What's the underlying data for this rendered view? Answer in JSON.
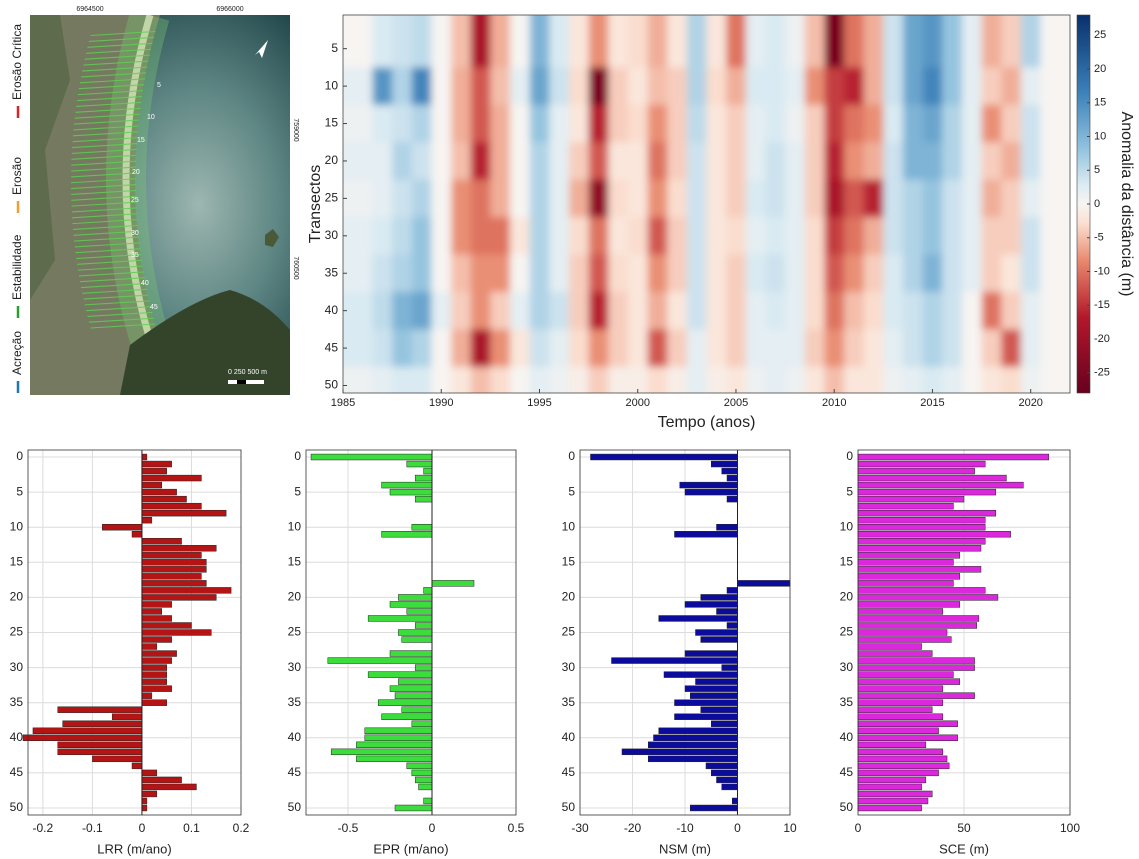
{
  "map": {
    "coords_top": [
      "6964500",
      "6966000"
    ],
    "coords_right": [
      "759000",
      "760500"
    ],
    "transect_labels": [
      "5",
      "10",
      "15",
      "20",
      "25",
      "30",
      "35",
      "40",
      "45"
    ],
    "scale_label": "0  250 500 m",
    "legend": [
      {
        "label": "Erosão Crítica",
        "color": "#d62728"
      },
      {
        "label": "Erosão",
        "color": "#f0a030"
      },
      {
        "label": "Estabilidade",
        "color": "#2ca02c"
      },
      {
        "label": "Acreção",
        "color": "#1f77b4"
      }
    ]
  },
  "chart_data": [
    {
      "type": "heatmap",
      "xlabel": "Tempo (anos)",
      "ylabel": "Transectos",
      "x": [
        1986,
        1987,
        1988,
        1989,
        1990,
        1991,
        1992,
        1993,
        1994,
        1995,
        1996,
        1997,
        1998,
        1999,
        2000,
        2001,
        2002,
        2003,
        2004,
        2005,
        2006,
        2007,
        2008,
        2009,
        2010,
        2011,
        2012,
        2013,
        2014,
        2015,
        2016,
        2017,
        2018,
        2019,
        2020,
        2021
      ],
      "y": [
        5,
        10,
        15,
        20,
        25,
        30,
        35,
        40,
        45,
        50
      ],
      "z": [
        [
          0,
          3,
          4,
          5,
          0,
          -5,
          -18,
          -6,
          0,
          10,
          3,
          -2,
          -8,
          -2,
          -3,
          -6,
          -2,
          6,
          -2,
          -10,
          2,
          3,
          1,
          -5,
          -25,
          -10,
          -6,
          4,
          12,
          14,
          8,
          2,
          -6,
          -4,
          6,
          0
        ],
        [
          2,
          14,
          6,
          16,
          0,
          -6,
          -12,
          -5,
          2,
          12,
          4,
          -3,
          -25,
          -4,
          -2,
          -5,
          -4,
          6,
          -3,
          -6,
          3,
          3,
          2,
          -8,
          -14,
          -16,
          -6,
          4,
          12,
          16,
          8,
          2,
          -4,
          -6,
          2,
          0
        ],
        [
          1,
          3,
          4,
          6,
          0,
          -6,
          -12,
          -6,
          0,
          8,
          2,
          -2,
          -16,
          -4,
          -3,
          -8,
          -4,
          5,
          -2,
          -4,
          2,
          3,
          1,
          -4,
          -14,
          -10,
          -8,
          3,
          10,
          12,
          6,
          2,
          -8,
          -4,
          4,
          0
        ],
        [
          2,
          2,
          6,
          4,
          0,
          -5,
          -16,
          -6,
          0,
          6,
          2,
          -4,
          -12,
          -2,
          -2,
          -10,
          -4,
          4,
          -2,
          -4,
          2,
          4,
          2,
          -4,
          -16,
          -8,
          -6,
          4,
          10,
          10,
          6,
          2,
          -4,
          -6,
          4,
          0
        ],
        [
          1,
          2,
          4,
          6,
          0,
          -8,
          -10,
          -6,
          0,
          6,
          2,
          -6,
          -22,
          -3,
          -2,
          -8,
          -3,
          4,
          -2,
          -4,
          3,
          4,
          2,
          -4,
          -18,
          -12,
          -16,
          4,
          6,
          8,
          4,
          2,
          -6,
          -4,
          2,
          0
        ],
        [
          2,
          3,
          5,
          8,
          0,
          -8,
          -10,
          -10,
          -2,
          6,
          2,
          -3,
          -10,
          -2,
          -3,
          -12,
          -4,
          4,
          -2,
          -3,
          2,
          3,
          2,
          -3,
          -14,
          -10,
          -6,
          4,
          6,
          8,
          4,
          2,
          -4,
          -4,
          4,
          0
        ],
        [
          2,
          4,
          6,
          8,
          0,
          -5,
          -8,
          -8,
          0,
          6,
          2,
          -4,
          -12,
          -3,
          -2,
          -8,
          -4,
          4,
          -2,
          -4,
          3,
          4,
          2,
          -3,
          -12,
          -8,
          -4,
          3,
          6,
          10,
          4,
          2,
          -4,
          -2,
          4,
          0
        ],
        [
          3,
          5,
          10,
          12,
          2,
          -4,
          -8,
          -4,
          2,
          6,
          4,
          -4,
          -16,
          -4,
          -2,
          -6,
          -2,
          4,
          -2,
          -4,
          2,
          3,
          2,
          -3,
          -10,
          -5,
          -3,
          3,
          4,
          6,
          4,
          0,
          -10,
          -4,
          2,
          0
        ],
        [
          3,
          4,
          8,
          6,
          0,
          -6,
          -18,
          -8,
          -2,
          4,
          2,
          -3,
          -8,
          -4,
          -2,
          -12,
          -4,
          2,
          -2,
          -4,
          2,
          2,
          2,
          -4,
          -8,
          -4,
          -2,
          2,
          4,
          6,
          4,
          0,
          -4,
          -12,
          2,
          0
        ],
        [
          1,
          2,
          3,
          3,
          0,
          -2,
          -5,
          -3,
          0,
          2,
          1,
          -1,
          -4,
          -1,
          -1,
          -3,
          -1,
          2,
          -1,
          -2,
          1,
          2,
          1,
          -2,
          -5,
          -2,
          -2,
          1,
          2,
          3,
          2,
          0,
          -2,
          -3,
          1,
          0
        ]
      ],
      "xlim": [
        1985,
        2022
      ],
      "xticks": [
        1985,
        1990,
        1995,
        2000,
        2005,
        2010,
        2015,
        2020
      ],
      "ylim": [
        0.5,
        51
      ],
      "yticks": [
        5,
        10,
        15,
        20,
        25,
        30,
        35,
        40,
        45,
        50
      ],
      "invert_y": true,
      "colormap": "RdBu",
      "colorbar": {
        "label": "Anomalia da distância (m)",
        "lim": [
          -28,
          28
        ],
        "ticks": [
          -25,
          -20,
          -15,
          -10,
          -5,
          0,
          5,
          10,
          15,
          20,
          25
        ]
      }
    },
    {
      "type": "barh",
      "xlabel": "LRR (m/ano)",
      "color": "#b41414",
      "y": [
        0,
        1,
        2,
        3,
        4,
        5,
        6,
        7,
        8,
        9,
        10,
        11,
        12,
        13,
        14,
        15,
        16,
        17,
        18,
        19,
        20,
        21,
        22,
        23,
        24,
        25,
        26,
        27,
        28,
        29,
        30,
        31,
        32,
        33,
        34,
        35,
        36,
        37,
        38,
        39,
        40,
        41,
        42,
        43,
        44,
        45,
        46,
        47,
        48,
        49,
        50
      ],
      "values": [
        0.01,
        0.06,
        0.05,
        0.12,
        0.04,
        0.07,
        0.09,
        0.12,
        0.17,
        0.02,
        -0.08,
        -0.02,
        0.08,
        0.15,
        0.12,
        0.13,
        0.13,
        0.12,
        0.13,
        0.18,
        0.15,
        0.06,
        0.04,
        0.06,
        0.1,
        0.14,
        0.06,
        0.03,
        0.07,
        0.06,
        0.05,
        0.05,
        0.05,
        0.06,
        0.02,
        0.05,
        -0.17,
        -0.06,
        -0.16,
        -0.22,
        -0.24,
        -0.17,
        -0.17,
        -0.1,
        -0.02,
        0.03,
        0.08,
        0.11,
        0.03,
        0.01,
        0.01
      ],
      "xlim": [
        -0.23,
        0.2
      ],
      "xticks": [
        -0.2,
        -0.1,
        0,
        0.1,
        0.2
      ],
      "ylim": [
        -1,
        51
      ],
      "yticks": [
        0,
        5,
        10,
        15,
        20,
        25,
        30,
        35,
        40,
        45,
        50
      ],
      "invert_y": true,
      "grid": true
    },
    {
      "type": "barh",
      "xlabel": "EPR (m/ano)",
      "color": "#3cdc3c",
      "y": [
        0,
        1,
        2,
        3,
        4,
        5,
        6,
        7,
        8,
        9,
        10,
        11,
        12,
        13,
        14,
        15,
        16,
        17,
        18,
        19,
        20,
        21,
        22,
        23,
        24,
        25,
        26,
        27,
        28,
        29,
        30,
        31,
        32,
        33,
        34,
        35,
        36,
        37,
        38,
        39,
        40,
        41,
        42,
        43,
        44,
        45,
        46,
        47,
        48,
        49,
        50
      ],
      "values": [
        -0.72,
        -0.15,
        -0.05,
        -0.1,
        -0.3,
        -0.25,
        -0.1,
        0,
        0,
        0,
        -0.12,
        -0.3,
        0,
        0,
        0,
        0,
        0,
        0,
        0.25,
        -0.05,
        -0.2,
        -0.25,
        -0.15,
        -0.38,
        -0.1,
        -0.2,
        -0.18,
        0,
        -0.25,
        -0.62,
        -0.1,
        -0.38,
        -0.2,
        -0.25,
        -0.22,
        -0.32,
        -0.18,
        -0.3,
        -0.12,
        -0.4,
        -0.4,
        -0.45,
        -0.6,
        -0.45,
        -0.15,
        -0.12,
        -0.1,
        -0.08,
        0,
        -0.05,
        -0.22
      ],
      "xlim": [
        -0.75,
        0.5
      ],
      "xticks": [
        -0.5,
        0,
        0.5
      ],
      "ylim": [
        -1,
        51
      ],
      "yticks": [
        0,
        5,
        10,
        15,
        20,
        25,
        30,
        35,
        40,
        45,
        50
      ],
      "invert_y": true,
      "grid": true
    },
    {
      "type": "barh",
      "xlabel": "NSM (m)",
      "color": "#0c0c9c",
      "y": [
        0,
        1,
        2,
        3,
        4,
        5,
        6,
        7,
        8,
        9,
        10,
        11,
        12,
        13,
        14,
        15,
        16,
        17,
        18,
        19,
        20,
        21,
        22,
        23,
        24,
        25,
        26,
        27,
        28,
        29,
        30,
        31,
        32,
        33,
        34,
        35,
        36,
        37,
        38,
        39,
        40,
        41,
        42,
        43,
        44,
        45,
        46,
        47,
        48,
        49,
        50
      ],
      "values": [
        -28,
        -5,
        -3,
        -2,
        -11,
        -10,
        -2,
        0,
        0,
        0,
        -4,
        -12,
        0,
        0,
        0,
        0,
        0,
        0,
        10,
        -2,
        -7,
        -10,
        -4,
        -15,
        -2,
        -8,
        -7,
        0,
        -10,
        -24,
        -3,
        -14,
        -8,
        -10,
        -9,
        -12,
        -7,
        -12,
        -5,
        -15,
        -16,
        -17,
        -22,
        -17,
        -6,
        -5,
        -4,
        -3,
        0,
        -1,
        -9
      ],
      "xlim": [
        -30,
        10
      ],
      "xticks": [
        -30,
        -20,
        -10,
        0,
        10
      ],
      "ylim": [
        -1,
        51
      ],
      "yticks": [
        0,
        5,
        10,
        15,
        20,
        25,
        30,
        35,
        40,
        45,
        50
      ],
      "invert_y": true,
      "grid": true
    },
    {
      "type": "barh",
      "xlabel": "SCE (m)",
      "color": "#dc28dc",
      "y": [
        0,
        1,
        2,
        3,
        4,
        5,
        6,
        7,
        8,
        9,
        10,
        11,
        12,
        13,
        14,
        15,
        16,
        17,
        18,
        19,
        20,
        21,
        22,
        23,
        24,
        25,
        26,
        27,
        28,
        29,
        30,
        31,
        32,
        33,
        34,
        35,
        36,
        37,
        38,
        39,
        40,
        41,
        42,
        43,
        44,
        45,
        46,
        47,
        48,
        49,
        50
      ],
      "values": [
        90,
        60,
        55,
        70,
        78,
        65,
        50,
        45,
        65,
        60,
        60,
        72,
        60,
        58,
        48,
        45,
        58,
        48,
        45,
        60,
        66,
        48,
        40,
        57,
        56,
        42,
        44,
        30,
        35,
        55,
        55,
        45,
        48,
        40,
        55,
        40,
        35,
        40,
        47,
        38,
        47,
        32,
        40,
        42,
        43,
        38,
        32,
        30,
        35,
        33,
        30
      ],
      "xlim": [
        0,
        100
      ],
      "xticks": [
        0,
        50,
        100
      ],
      "ylim": [
        -1,
        51
      ],
      "yticks": [
        0,
        5,
        10,
        15,
        20,
        25,
        30,
        35,
        40,
        45,
        50
      ],
      "invert_y": true,
      "grid": true
    }
  ]
}
